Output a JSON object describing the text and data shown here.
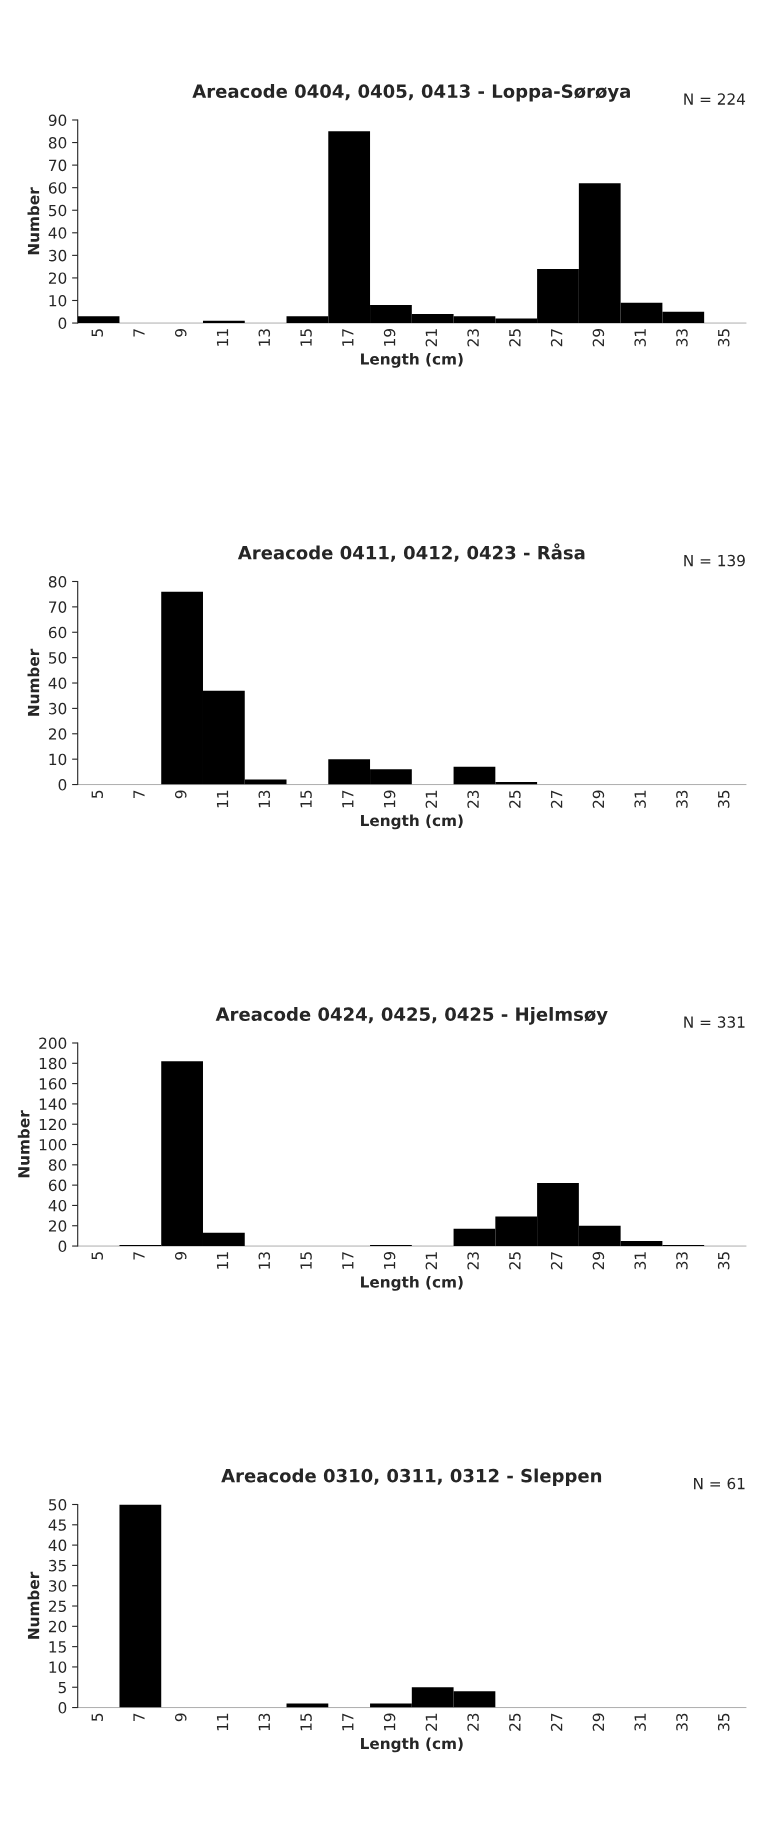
{
  "chart_data": [
    {
      "type": "bar",
      "title": "Areacode 0404, 0405, 0413 - Loppa-Sørøya",
      "annotations": [
        "N = 224"
      ],
      "xlabel": "Length (cm)",
      "ylabel": "Number",
      "categories": [
        "5",
        "7",
        "9",
        "11",
        "13",
        "15",
        "17",
        "19",
        "21",
        "23",
        "25",
        "27",
        "29",
        "31",
        "33",
        "35"
      ],
      "values": [
        3,
        0,
        0,
        1,
        0,
        3,
        85,
        8,
        4,
        3,
        2,
        24,
        62,
        9,
        5,
        0
      ],
      "color": "#000000",
      "ylim": [
        0,
        90
      ],
      "yticks": [
        0,
        10,
        20,
        30,
        40,
        50,
        60,
        70,
        80,
        90
      ],
      "grid": false
    },
    {
      "type": "bar",
      "title": "Areacode 0411, 0412, 0423 - Råsa",
      "annotations": [
        "N = 139"
      ],
      "xlabel": "Length (cm)",
      "ylabel": "Number",
      "categories": [
        "5",
        "7",
        "9",
        "11",
        "13",
        "15",
        "17",
        "19",
        "21",
        "23",
        "25",
        "27",
        "29",
        "31",
        "33",
        "35"
      ],
      "values": [
        0,
        0,
        76,
        37,
        2,
        0,
        10,
        6,
        0,
        7,
        1,
        0,
        0,
        0,
        0,
        0
      ],
      "color": "#000000",
      "ylim": [
        0,
        80
      ],
      "yticks": [
        0,
        10,
        20,
        30,
        40,
        50,
        60,
        70,
        80
      ],
      "grid": false
    },
    {
      "type": "bar",
      "title": "Areacode 0424, 0425, 0425 - Hjelmsøy",
      "annotations": [
        "N = 331"
      ],
      "xlabel": "Length (cm)",
      "ylabel": "Number",
      "categories": [
        "5",
        "7",
        "9",
        "11",
        "13",
        "15",
        "17",
        "19",
        "21",
        "23",
        "25",
        "27",
        "29",
        "31",
        "33",
        "35"
      ],
      "values": [
        0,
        1,
        182,
        13,
        0,
        0,
        0,
        1,
        0,
        17,
        29,
        62,
        20,
        5,
        1,
        0
      ],
      "color": "#000000",
      "ylim": [
        0,
        200
      ],
      "yticks": [
        0,
        20,
        40,
        60,
        80,
        100,
        120,
        140,
        160,
        180,
        200
      ],
      "grid": false
    },
    {
      "type": "bar",
      "title": "Areacode 0310, 0311, 0312 - Sleppen",
      "annotations": [
        "N = 61"
      ],
      "xlabel": "Length (cm)",
      "ylabel": "Number",
      "categories": [
        "5",
        "7",
        "9",
        "11",
        "13",
        "15",
        "17",
        "19",
        "21",
        "23",
        "25",
        "27",
        "29",
        "31",
        "33",
        "35"
      ],
      "values": [
        0,
        50,
        0,
        0,
        0,
        1,
        0,
        1,
        5,
        4,
        0,
        0,
        0,
        0,
        0,
        0
      ],
      "color": "#000000",
      "ylim": [
        0,
        50
      ],
      "yticks": [
        0,
        5,
        10,
        15,
        20,
        25,
        30,
        35,
        40,
        45,
        50
      ],
      "grid": false
    }
  ]
}
